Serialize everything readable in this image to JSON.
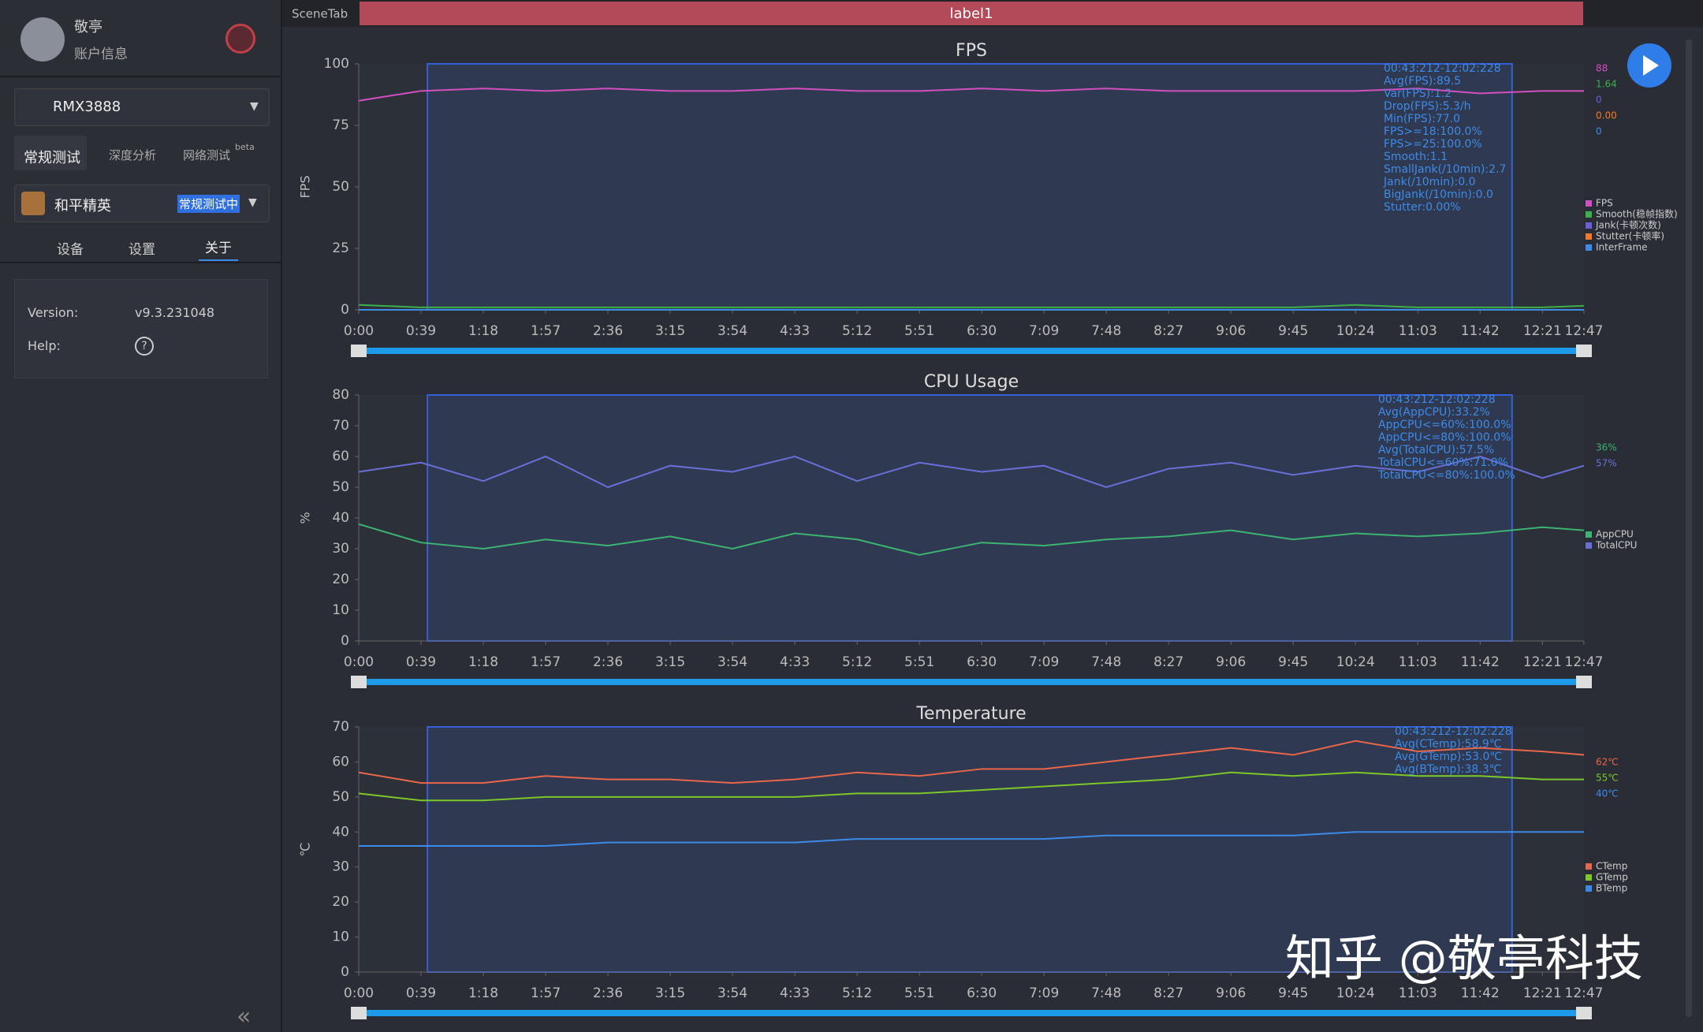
{
  "topbar": {
    "tab": "SceneTab",
    "label": "label1"
  },
  "sidebar": {
    "user": "敬亭",
    "account": "账户信息",
    "device": "RMX3888",
    "test_tabs": [
      "常规测试",
      "深度分析",
      "网络测试"
    ],
    "beta": "beta",
    "app": "和平精英",
    "status": "常规测试中",
    "sub_tabs": [
      "设备",
      "设置",
      "关于"
    ],
    "version_label": "Version:",
    "version": "v9.3.231048",
    "help_label": "Help:"
  },
  "watermark": "知乎 @敬亭科技",
  "chart_data": [
    {
      "type": "line",
      "title": "FPS",
      "y_label": "FPS",
      "xlim": [
        0,
        767
      ],
      "ylim": [
        0,
        100
      ],
      "yticks": [
        0,
        25,
        50,
        75,
        100
      ],
      "xticks": [
        {
          "value": 0,
          "label": "0:00"
        },
        {
          "value": 39,
          "label": "0:39"
        },
        {
          "value": 78,
          "label": "1:18"
        },
        {
          "value": 117,
          "label": "1:57"
        },
        {
          "value": 156,
          "label": "2:36"
        },
        {
          "value": 195,
          "label": "3:15"
        },
        {
          "value": 234,
          "label": "3:54"
        },
        {
          "value": 273,
          "label": "4:33"
        },
        {
          "value": 312,
          "label": "5:12"
        },
        {
          "value": 351,
          "label": "5:51"
        },
        {
          "value": 390,
          "label": "6:30"
        },
        {
          "value": 429,
          "label": "7:09"
        },
        {
          "value": 468,
          "label": "7:48"
        },
        {
          "value": 507,
          "label": "8:27"
        },
        {
          "value": 546,
          "label": "9:06"
        },
        {
          "value": 585,
          "label": "9:45"
        },
        {
          "value": 624,
          "label": "10:24"
        },
        {
          "value": 663,
          "label": "11:03"
        },
        {
          "value": 702,
          "label": "11:42"
        },
        {
          "value": 741,
          "label": "12:21"
        },
        {
          "value": 767,
          "label": "12:47"
        }
      ],
      "selection": [
        43,
        722
      ],
      "x": [
        0,
        39,
        78,
        117,
        156,
        195,
        234,
        273,
        312,
        351,
        390,
        429,
        468,
        507,
        546,
        585,
        624,
        663,
        702,
        741,
        767
      ],
      "series": [
        {
          "name": "FPS",
          "color": "#d24fc0",
          "current": "88",
          "values": [
            85,
            89,
            90,
            89,
            90,
            89,
            89,
            90,
            89,
            89,
            90,
            89,
            90,
            89,
            89,
            89,
            89,
            90,
            88,
            89,
            89
          ]
        },
        {
          "name": "Smooth(稳帧指数)",
          "color": "#3cb04a",
          "current": "1.64",
          "values": [
            2,
            1,
            1,
            1,
            1,
            1,
            1,
            1,
            1,
            1,
            1,
            1,
            1,
            1,
            1,
            1,
            2,
            1,
            1,
            1,
            1.64
          ]
        },
        {
          "name": "Jank(卡顿次数)",
          "color": "#6a5fd8",
          "current": "0",
          "values": [
            0,
            0,
            0,
            0,
            0,
            0,
            0,
            0,
            0,
            0,
            0,
            0,
            0,
            0,
            0,
            0,
            0,
            0,
            0,
            0,
            0
          ]
        },
        {
          "name": "Stutter(卡顿率)",
          "color": "#f07a2a",
          "current": "0.00",
          "values": [
            0,
            0,
            0,
            0,
            0,
            0,
            0,
            0,
            0,
            0,
            0,
            0,
            0,
            0,
            0,
            0,
            0,
            0,
            0,
            0,
            0
          ]
        },
        {
          "name": "InterFrame",
          "color": "#3d8be8",
          "current": "0",
          "values": [
            0,
            0,
            0,
            0,
            0,
            0,
            0,
            0,
            0,
            0,
            0,
            0,
            0,
            0,
            0,
            0,
            0,
            0,
            0,
            0,
            0
          ]
        }
      ],
      "annotations": [
        "00:43:212-12:02:228",
        "Avg(FPS):89.5",
        "Var(FPS):1.2",
        "Drop(FPS):5.3/h",
        "Min(FPS):77.0",
        "FPS>=18:100.0%",
        "FPS>=25:100.0%",
        "Smooth:1.1",
        "SmallJank(/10min):2.7",
        "Jank(/10min):0.0",
        "BigJank(/10min):0.0",
        "Stutter:0.00%"
      ]
    },
    {
      "type": "line",
      "title": "CPU Usage",
      "y_label": "%",
      "xlim": [
        0,
        767
      ],
      "ylim": [
        0,
        80
      ],
      "yticks": [
        0,
        10,
        20,
        30,
        40,
        50,
        60,
        70,
        80
      ],
      "xticks": [
        {
          "value": 0,
          "label": "0:00"
        },
        {
          "value": 39,
          "label": "0:39"
        },
        {
          "value": 78,
          "label": "1:18"
        },
        {
          "value": 117,
          "label": "1:57"
        },
        {
          "value": 156,
          "label": "2:36"
        },
        {
          "value": 195,
          "label": "3:15"
        },
        {
          "value": 234,
          "label": "3:54"
        },
        {
          "value": 273,
          "label": "4:33"
        },
        {
          "value": 312,
          "label": "5:12"
        },
        {
          "value": 351,
          "label": "5:51"
        },
        {
          "value": 390,
          "label": "6:30"
        },
        {
          "value": 429,
          "label": "7:09"
        },
        {
          "value": 468,
          "label": "7:48"
        },
        {
          "value": 507,
          "label": "8:27"
        },
        {
          "value": 546,
          "label": "9:06"
        },
        {
          "value": 585,
          "label": "9:45"
        },
        {
          "value": 624,
          "label": "10:24"
        },
        {
          "value": 663,
          "label": "11:03"
        },
        {
          "value": 702,
          "label": "11:42"
        },
        {
          "value": 741,
          "label": "12:21"
        },
        {
          "value": 767,
          "label": "12:47"
        }
      ],
      "selection": [
        43,
        722
      ],
      "x": [
        0,
        39,
        78,
        117,
        156,
        195,
        234,
        273,
        312,
        351,
        390,
        429,
        468,
        507,
        546,
        585,
        624,
        663,
        702,
        741,
        767
      ],
      "series": [
        {
          "name": "AppCPU",
          "color": "#3cb371",
          "current": "36%",
          "values": [
            38,
            32,
            30,
            33,
            31,
            34,
            30,
            35,
            33,
            28,
            32,
            31,
            33,
            34,
            36,
            33,
            35,
            34,
            35,
            37,
            36
          ]
        },
        {
          "name": "TotalCPU",
          "color": "#6a6fd8",
          "current": "57%",
          "values": [
            55,
            58,
            52,
            60,
            50,
            57,
            55,
            60,
            52,
            58,
            55,
            57,
            50,
            56,
            58,
            54,
            57,
            55,
            60,
            53,
            57
          ]
        }
      ],
      "annotations": [
        "00:43:212-12:02:228",
        "Avg(AppCPU):33.2%",
        "AppCPU<=60%:100.0%",
        "AppCPU<=80%:100.0%",
        "Avg(TotalCPU):57.5%",
        "TotalCPU<=60%:71.0%",
        "TotalCPU<=80%:100.0%"
      ]
    },
    {
      "type": "line",
      "title": "Temperature",
      "y_label": "℃",
      "xlim": [
        0,
        767
      ],
      "ylim": [
        0,
        70
      ],
      "yticks": [
        0,
        10,
        20,
        30,
        40,
        50,
        60,
        70
      ],
      "xticks": [
        {
          "value": 0,
          "label": "0:00"
        },
        {
          "value": 39,
          "label": "0:39"
        },
        {
          "value": 78,
          "label": "1:18"
        },
        {
          "value": 117,
          "label": "1:57"
        },
        {
          "value": 156,
          "label": "2:36"
        },
        {
          "value": 195,
          "label": "3:15"
        },
        {
          "value": 234,
          "label": "3:54"
        },
        {
          "value": 273,
          "label": "4:33"
        },
        {
          "value": 312,
          "label": "5:12"
        },
        {
          "value": 351,
          "label": "5:51"
        },
        {
          "value": 390,
          "label": "6:30"
        },
        {
          "value": 429,
          "label": "7:09"
        },
        {
          "value": 468,
          "label": "7:48"
        },
        {
          "value": 507,
          "label": "8:27"
        },
        {
          "value": 546,
          "label": "9:06"
        },
        {
          "value": 585,
          "label": "9:45"
        },
        {
          "value": 624,
          "label": "10:24"
        },
        {
          "value": 663,
          "label": "11:03"
        },
        {
          "value": 702,
          "label": "11:42"
        },
        {
          "value": 741,
          "label": "12:21"
        },
        {
          "value": 767,
          "label": "12:47"
        }
      ],
      "selection": [
        43,
        722
      ],
      "x": [
        0,
        39,
        78,
        117,
        156,
        195,
        234,
        273,
        312,
        351,
        390,
        429,
        468,
        507,
        546,
        585,
        624,
        663,
        702,
        741,
        767
      ],
      "series": [
        {
          "name": "CTemp",
          "color": "#e8664a",
          "current": "62℃",
          "values": [
            57,
            54,
            54,
            56,
            55,
            55,
            54,
            55,
            57,
            56,
            58,
            58,
            60,
            62,
            64,
            62,
            66,
            63,
            64,
            63,
            62
          ]
        },
        {
          "name": "GTemp",
          "color": "#7cc72a",
          "current": "55℃",
          "values": [
            51,
            49,
            49,
            50,
            50,
            50,
            50,
            50,
            51,
            51,
            52,
            53,
            54,
            55,
            57,
            56,
            57,
            56,
            56,
            55,
            55
          ]
        },
        {
          "name": "BTemp",
          "color": "#3d8be8",
          "current": "40℃",
          "values": [
            36,
            36,
            36,
            36,
            37,
            37,
            37,
            37,
            38,
            38,
            38,
            38,
            39,
            39,
            39,
            39,
            40,
            40,
            40,
            40,
            40
          ]
        }
      ],
      "annotations": [
        "00:43:212-12:02:228",
        "Avg(CTemp):58.9℃",
        "Avg(GTemp):53.0℃",
        "Avg(BTemp):38.3℃"
      ]
    }
  ]
}
